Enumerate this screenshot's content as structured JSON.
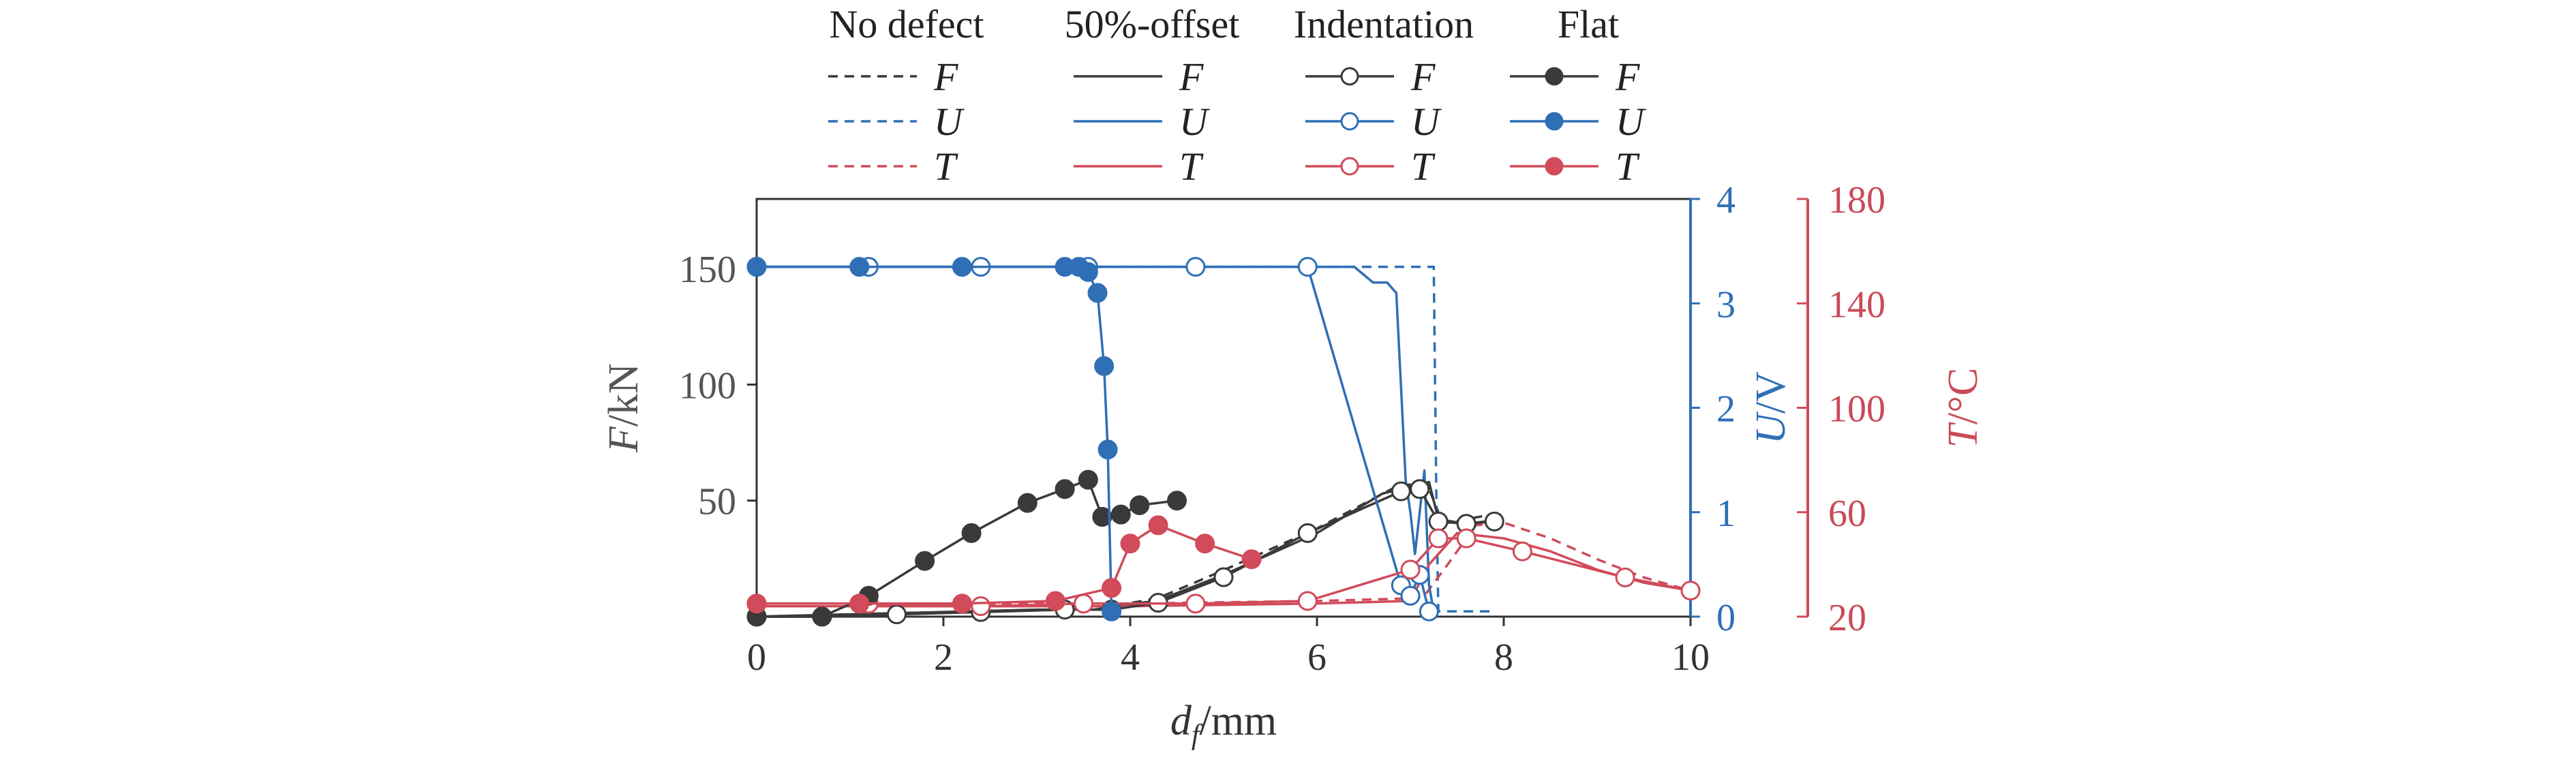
{
  "chart_data": {
    "type": "line",
    "xlabel": {
      "main": "d",
      "sub": "f",
      "unit": "/mm"
    },
    "ylabel_left": {
      "main": "F",
      "unit": "/kN"
    },
    "ylabel_u": {
      "main": "U",
      "unit": "/V"
    },
    "ylabel_t": {
      "main": "T",
      "unit": "/°C"
    },
    "xlim": [
      0,
      10
    ],
    "ylim_left": [
      0,
      180
    ],
    "ylim_u": [
      0,
      4
    ],
    "ylim_t": [
      20,
      180
    ],
    "xticks": [
      "0",
      "2",
      "4",
      "6",
      "8",
      "10"
    ],
    "yticks_left": [
      "50",
      "100",
      "150"
    ],
    "yticks_u": [
      "0",
      "1",
      "2",
      "3",
      "4"
    ],
    "yticks_t": [
      "20",
      "60",
      "100",
      "140",
      "180"
    ],
    "colors": {
      "F": "#3a3a3a",
      "U": "#2f6fb6",
      "T": "#d14b5a"
    },
    "legend": {
      "headers": [
        "No defect",
        "50%-offset",
        "Indentation",
        "Flat"
      ],
      "vars": [
        "F",
        "U",
        "T"
      ],
      "styles": [
        "dashed",
        "solid",
        "open-circle",
        "filled-circle"
      ]
    },
    "series": [
      {
        "name": "No defect",
        "variable": "F",
        "axis": "left",
        "style": "dashed",
        "x": [
          0,
          1,
          2,
          3,
          3.6,
          4.3,
          5,
          6,
          6.8,
          7.1,
          7.2,
          7.35,
          7.6,
          8.0
        ],
        "y": [
          0,
          1,
          2,
          3,
          3,
          8,
          20,
          38,
          55,
          58,
          55,
          40,
          42,
          45
        ]
      },
      {
        "name": "No defect",
        "variable": "U",
        "axis": "u",
        "style": "dashed",
        "x": [
          0,
          7.25,
          7.28,
          7.3,
          7.5,
          7.9
        ],
        "y": [
          3.35,
          3.35,
          1.0,
          0.05,
          0.05,
          0.05
        ]
      },
      {
        "name": "No defect",
        "variable": "T",
        "axis": "t",
        "style": "dashed",
        "x": [
          0,
          4,
          6,
          7.0,
          7.15,
          7.4,
          7.7,
          8.0,
          8.5,
          9,
          9.5,
          10
        ],
        "y": [
          25,
          25,
          26,
          27,
          28,
          40,
          55,
          56,
          50,
          42,
          35,
          30
        ]
      },
      {
        "name": "50%-offset",
        "variable": "F",
        "axis": "left",
        "style": "solid",
        "x": [
          0,
          1,
          2,
          3,
          3.6,
          4.3,
          5,
          6,
          6.7,
          7.0,
          7.2,
          7.3,
          7.6,
          8.0
        ],
        "y": [
          0,
          1,
          2,
          3,
          3,
          7,
          18,
          36,
          53,
          56,
          58,
          42,
          40,
          42
        ]
      },
      {
        "name": "50%-offset",
        "variable": "U",
        "axis": "u",
        "style": "solid",
        "x": [
          0,
          6.4,
          6.6,
          6.75,
          6.85,
          6.9,
          6.95,
          7.0,
          7.05,
          7.15,
          7.2,
          7.25
        ],
        "y": [
          3.35,
          3.35,
          3.2,
          3.2,
          3.1,
          2.2,
          1.3,
          1.0,
          0.6,
          1.4,
          0.3,
          0.05
        ]
      },
      {
        "name": "50%-offset",
        "variable": "T",
        "axis": "t",
        "style": "solid",
        "x": [
          0,
          4,
          6,
          7.0,
          7.2,
          7.5,
          8.0,
          8.5,
          9,
          9.5,
          10
        ],
        "y": [
          24,
          24,
          25,
          26,
          40,
          52,
          50,
          45,
          38,
          33,
          30
        ]
      },
      {
        "name": "Indentation",
        "variable": "F",
        "axis": "left",
        "style": "open-circle",
        "x": [
          0,
          0.7,
          1.5,
          2.4,
          3.3,
          3.8,
          4.3,
          5.0,
          5.9,
          6.9,
          7.1,
          7.3,
          7.6,
          7.9
        ],
        "y": [
          0,
          0,
          1,
          2,
          3,
          3,
          6,
          17,
          36,
          54,
          55,
          41,
          40,
          41
        ]
      },
      {
        "name": "Indentation",
        "variable": "U",
        "axis": "u",
        "style": "open-circle",
        "x": [
          0,
          1.2,
          2.4,
          3.55,
          4.7,
          5.9,
          6.9,
          7.0,
          7.1,
          7.2
        ],
        "y": [
          3.35,
          3.35,
          3.35,
          3.35,
          3.35,
          3.35,
          0.3,
          0.2,
          0.4,
          0.05
        ]
      },
      {
        "name": "Indentation",
        "variable": "T",
        "axis": "t",
        "style": "open-circle",
        "x": [
          0,
          1.2,
          2.4,
          3.5,
          4.7,
          5.9,
          7.0,
          7.3,
          7.6,
          8.2,
          9.3,
          10
        ],
        "y": [
          25,
          25,
          24,
          25,
          25,
          26,
          38,
          50,
          50,
          45,
          35,
          30
        ]
      },
      {
        "name": "Flat",
        "variable": "F",
        "axis": "left",
        "style": "filled-circle",
        "x": [
          0,
          0.7,
          1.2,
          1.8,
          2.3,
          2.9,
          3.3,
          3.55,
          3.7,
          3.9,
          4.1,
          4.5
        ],
        "y": [
          0,
          0,
          9,
          24,
          36,
          49,
          55,
          59,
          43,
          44,
          48,
          50
        ]
      },
      {
        "name": "Flat",
        "variable": "U",
        "axis": "u",
        "style": "filled-circle",
        "x": [
          0,
          1.1,
          2.2,
          3.3,
          3.45,
          3.55,
          3.65,
          3.72,
          3.76,
          3.8
        ],
        "y": [
          3.35,
          3.35,
          3.35,
          3.35,
          3.35,
          3.3,
          3.1,
          2.4,
          1.6,
          0.05
        ]
      },
      {
        "name": "Flat",
        "variable": "T",
        "axis": "t",
        "style": "filled-circle",
        "x": [
          0,
          1.1,
          2.2,
          3.2,
          3.8,
          4.0,
          4.3,
          4.8,
          5.3
        ],
        "y": [
          25,
          25,
          25,
          26,
          31,
          48,
          55,
          48,
          42
        ]
      }
    ]
  }
}
